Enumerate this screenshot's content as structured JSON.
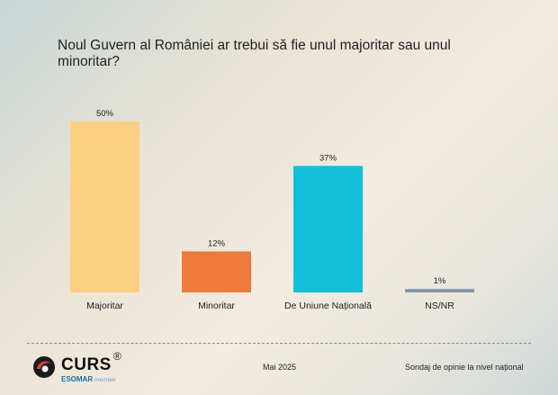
{
  "title": "Noul Guvern al României ar trebui să fie unul majoritar sau unul minoritar?",
  "chart_data": {
    "type": "bar",
    "categories": [
      "Majoritar",
      "Minoritar",
      "De Uniune Națională",
      "NS/NR"
    ],
    "values": [
      50,
      12,
      37,
      1
    ],
    "value_labels": [
      "50%",
      "12%",
      "37%",
      "1%"
    ],
    "colors": [
      "#fcd083",
      "#ee7a3b",
      "#12bfd8",
      "#8595a6"
    ],
    "ylim": [
      0,
      50
    ],
    "grid": false,
    "legend": "none"
  },
  "footer": {
    "logo_text": "CURS",
    "logo_reg": "®",
    "logo_esomar": "ESOMAR",
    "logo_member": "member",
    "date": "Mai 2025",
    "source": "Sondaj de opinie la nivel național"
  },
  "icons": {
    "logo": "curs-swirl-icon"
  }
}
